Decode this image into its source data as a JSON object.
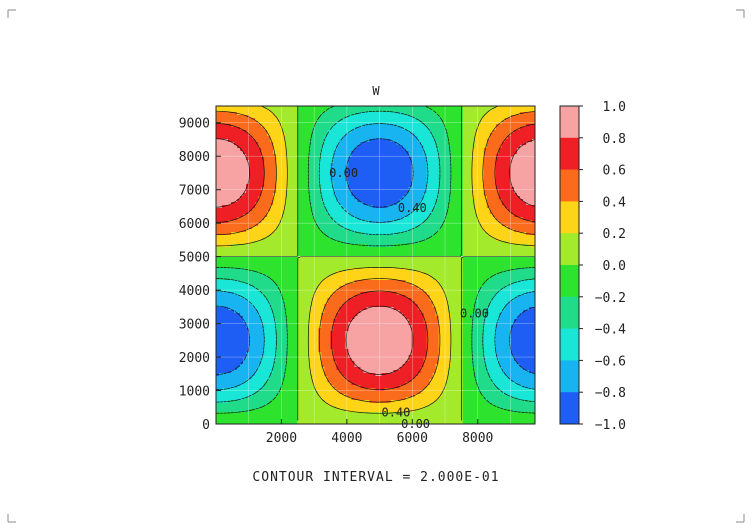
{
  "chart_data": {
    "type": "heatmap",
    "title": "W",
    "xlabel": "",
    "ylabel": "",
    "xlim": [
      0,
      9750
    ],
    "ylim": [
      0,
      9500
    ],
    "x_ticks": [
      2000,
      4000,
      6000,
      8000
    ],
    "y_ticks": [
      0,
      1000,
      2000,
      3000,
      4000,
      5000,
      6000,
      7000,
      8000,
      9000
    ],
    "colorbar": {
      "levels": [
        1.0,
        0.8,
        0.6,
        0.4,
        0.2,
        0.0,
        -0.2,
        -0.4,
        -0.6,
        -0.8,
        -1.0
      ],
      "labels": [
        "1.0",
        "0.8",
        "0.6",
        "0.4",
        "0.2",
        "0.0",
        "−0.2",
        "−0.4",
        "−0.6",
        "−0.8",
        "−1.0"
      ],
      "colors": [
        "#f7a3a3",
        "#ee1f25",
        "#fb6b1c",
        "#fdd417",
        "#a2ea2b",
        "#2ee32e",
        "#20db89",
        "#19e6d6",
        "#18b4f2",
        "#1e5ef5"
      ]
    },
    "contour_interval": 0.2,
    "contour_labels": [
      {
        "text": "0.00",
        "x": 3900,
        "y": 7500
      },
      {
        "text": "0.40",
        "x": 6000,
        "y": 6450
      },
      {
        "text": "0.00",
        "x": 7900,
        "y": 3300
      },
      {
        "text": "0.40",
        "x": 5500,
        "y": 350
      },
      {
        "text": "0.00",
        "x": 6100,
        "y": 0
      }
    ],
    "field_description": "w = cos(2*pi*(x-5000)/10000) * sin(2*pi*y/10000)"
  },
  "footer_text": "CONTOUR INTERVAL = 2.000E-01"
}
